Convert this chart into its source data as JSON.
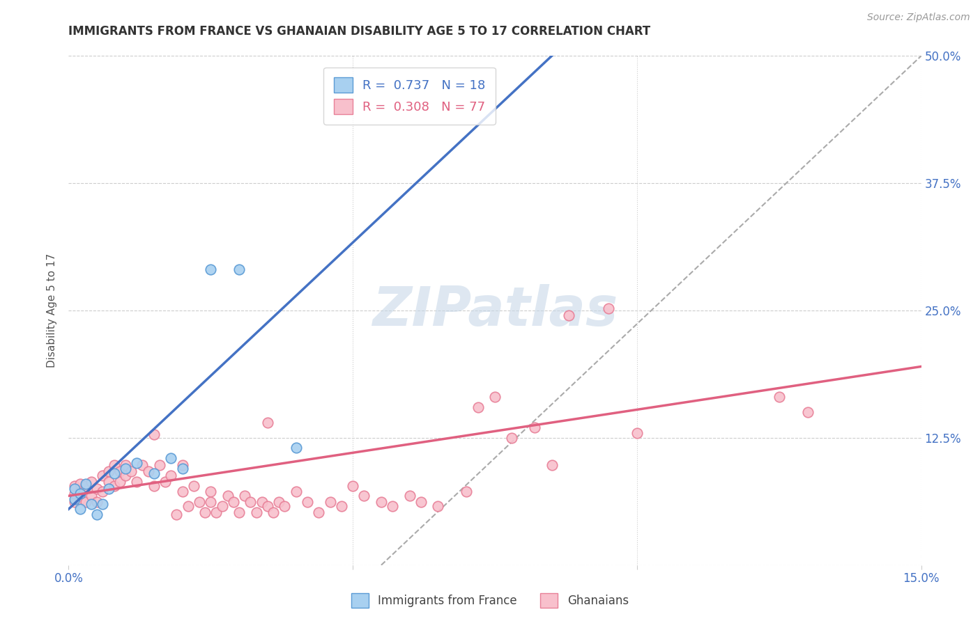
{
  "title": "IMMIGRANTS FROM FRANCE VS GHANAIAN DISABILITY AGE 5 TO 17 CORRELATION CHART",
  "source": "Source: ZipAtlas.com",
  "ylabel": "Disability Age 5 to 17",
  "xlim": [
    0.0,
    0.15
  ],
  "ylim": [
    0.0,
    0.5
  ],
  "xticks": [
    0.0,
    0.05,
    0.1,
    0.15
  ],
  "xtick_labels": [
    "0.0%",
    "",
    "",
    "15.0%"
  ],
  "ytick_labels_right": [
    "",
    "12.5%",
    "25.0%",
    "37.5%",
    "50.0%"
  ],
  "yticks": [
    0.0,
    0.125,
    0.25,
    0.375,
    0.5
  ],
  "R_blue": 0.737,
  "N_blue": 18,
  "R_pink": 0.308,
  "N_pink": 77,
  "blue_color": "#A8D0F0",
  "blue_edge_color": "#5B9BD5",
  "blue_line_color": "#4472C4",
  "pink_color": "#F8C0CC",
  "pink_edge_color": "#E88098",
  "pink_line_color": "#E06080",
  "grid_color": "#CCCCCC",
  "background_color": "#FFFFFF",
  "watermark": "ZIPatlas",
  "watermark_color": "#C8D8E8",
  "legend_label_blue": "Immigrants from France",
  "legend_label_pink": "Ghanaians",
  "blue_scatter_x": [
    0.001,
    0.001,
    0.002,
    0.002,
    0.003,
    0.004,
    0.005,
    0.006,
    0.007,
    0.008,
    0.01,
    0.012,
    0.015,
    0.018,
    0.02,
    0.025,
    0.03,
    0.04
  ],
  "blue_scatter_y": [
    0.065,
    0.075,
    0.07,
    0.055,
    0.08,
    0.06,
    0.05,
    0.06,
    0.075,
    0.09,
    0.095,
    0.1,
    0.09,
    0.105,
    0.095,
    0.29,
    0.29,
    0.115
  ],
  "pink_scatter_x": [
    0.001,
    0.001,
    0.001,
    0.002,
    0.002,
    0.002,
    0.003,
    0.003,
    0.004,
    0.004,
    0.005,
    0.005,
    0.006,
    0.006,
    0.007,
    0.007,
    0.008,
    0.008,
    0.009,
    0.009,
    0.01,
    0.01,
    0.011,
    0.012,
    0.013,
    0.014,
    0.015,
    0.015,
    0.016,
    0.017,
    0.018,
    0.019,
    0.02,
    0.02,
    0.021,
    0.022,
    0.023,
    0.024,
    0.025,
    0.025,
    0.026,
    0.027,
    0.028,
    0.029,
    0.03,
    0.031,
    0.032,
    0.033,
    0.034,
    0.035,
    0.035,
    0.036,
    0.037,
    0.038,
    0.04,
    0.042,
    0.044,
    0.046,
    0.048,
    0.05,
    0.052,
    0.055,
    0.057,
    0.06,
    0.062,
    0.065,
    0.07,
    0.072,
    0.075,
    0.078,
    0.082,
    0.085,
    0.088,
    0.095,
    0.1,
    0.125,
    0.13
  ],
  "pink_scatter_y": [
    0.062,
    0.07,
    0.078,
    0.065,
    0.072,
    0.08,
    0.062,
    0.078,
    0.068,
    0.082,
    0.075,
    0.062,
    0.088,
    0.072,
    0.092,
    0.082,
    0.078,
    0.098,
    0.092,
    0.082,
    0.098,
    0.088,
    0.092,
    0.082,
    0.098,
    0.092,
    0.078,
    0.128,
    0.098,
    0.082,
    0.088,
    0.05,
    0.098,
    0.072,
    0.058,
    0.078,
    0.062,
    0.052,
    0.072,
    0.062,
    0.052,
    0.058,
    0.068,
    0.062,
    0.052,
    0.068,
    0.062,
    0.052,
    0.062,
    0.058,
    0.14,
    0.052,
    0.062,
    0.058,
    0.072,
    0.062,
    0.052,
    0.062,
    0.058,
    0.078,
    0.068,
    0.062,
    0.058,
    0.068,
    0.062,
    0.058,
    0.072,
    0.155,
    0.165,
    0.125,
    0.135,
    0.098,
    0.245,
    0.252,
    0.13,
    0.165,
    0.15
  ],
  "blue_line_x0": 0.0,
  "blue_line_y0": 0.055,
  "blue_line_x1": 0.085,
  "blue_line_y1": 0.5,
  "pink_line_x0": 0.0,
  "pink_line_y0": 0.068,
  "pink_line_x1": 0.15,
  "pink_line_y1": 0.195,
  "dash_line_x0": 0.055,
  "dash_line_y0": 0.0,
  "dash_line_x1": 0.15,
  "dash_line_y1": 0.5
}
